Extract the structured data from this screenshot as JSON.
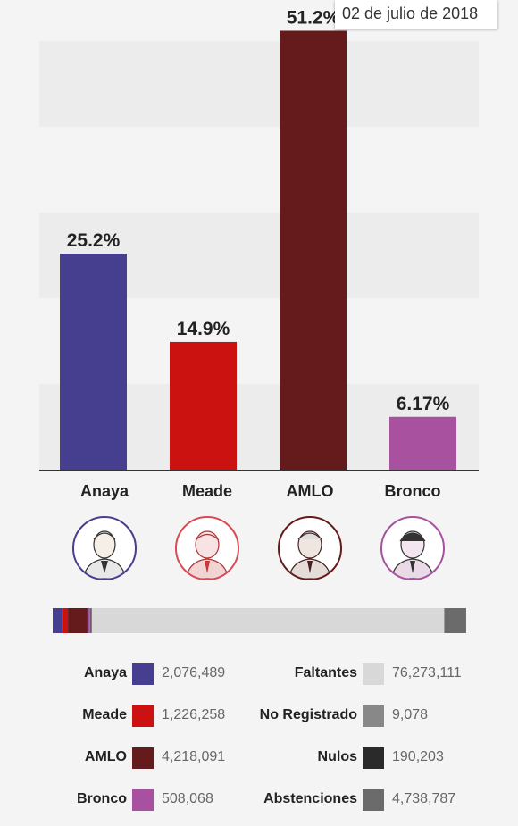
{
  "date": "02 de julio de 2018",
  "chart_data": {
    "type": "bar",
    "categories": [
      "Anaya",
      "Meade",
      "AMLO",
      "Bronco"
    ],
    "values": [
      25.2,
      14.9,
      51.2,
      6.17
    ],
    "value_labels": [
      "25.2%",
      "14.9%",
      "51.2%",
      "6.17%"
    ],
    "colors": [
      "#463e8e",
      "#cc1111",
      "#651b1b",
      "#a8519e"
    ],
    "ylim": [
      0,
      52
    ],
    "grid": "alternating bands",
    "title": "",
    "xlabel": "",
    "ylabel": ""
  },
  "candidates": [
    {
      "name": "Anaya",
      "color": "#463e8e",
      "icon": "anaya-portrait-icon"
    },
    {
      "name": "Meade",
      "color": "#d94a55",
      "icon": "meade-portrait-icon"
    },
    {
      "name": "AMLO",
      "color": "#651b1b",
      "icon": "amlo-portrait-icon"
    },
    {
      "name": "Bronco",
      "color": "#a8519e",
      "icon": "bronco-portrait-icon"
    }
  ],
  "progress_bar": {
    "segments": [
      {
        "name": "Anaya",
        "value": 2076489,
        "color": "#463e8e"
      },
      {
        "name": "Meade",
        "value": 1226258,
        "color": "#cc1111"
      },
      {
        "name": "AMLO",
        "value": 4218091,
        "color": "#651b1b"
      },
      {
        "name": "Bronco",
        "value": 508068,
        "color": "#a8519e"
      },
      {
        "name": "No Registrado",
        "value": 9078,
        "color": "#888888"
      },
      {
        "name": "Nulos",
        "value": 190203,
        "color": "#2a2a2a"
      },
      {
        "name": "Faltantes",
        "value": 76273111,
        "color": "#d8d8d8"
      },
      {
        "name": "Abstenciones",
        "value": 4738787,
        "color": "#6b6b6b"
      }
    ]
  },
  "legend": {
    "left": [
      {
        "label": "Anaya",
        "value": "2,076,489",
        "color": "#463e8e"
      },
      {
        "label": "Meade",
        "value": "1,226,258",
        "color": "#cc1111"
      },
      {
        "label": "AMLO",
        "value": "4,218,091",
        "color": "#651b1b"
      },
      {
        "label": "Bronco",
        "value": "508,068",
        "color": "#a8519e"
      }
    ],
    "right": [
      {
        "label": "Faltantes",
        "value": "76,273,111",
        "color": "#d8d8d8"
      },
      {
        "label": "No Registrado",
        "value": "9,078",
        "color": "#888888"
      },
      {
        "label": "Nulos",
        "value": "190,203",
        "color": "#2a2a2a"
      },
      {
        "label": "Abstenciones",
        "value": "4,738,787",
        "color": "#6b6b6b"
      }
    ]
  }
}
